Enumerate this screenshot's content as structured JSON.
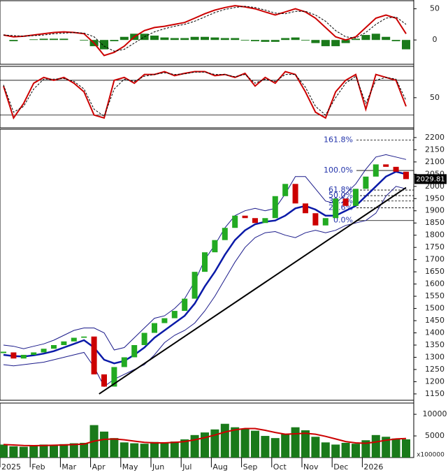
{
  "chart_data": [
    {
      "type": "macd",
      "ylim": [
        -39,
        63
      ],
      "yticks": [
        50,
        0
      ],
      "series": [
        {
          "color": "#cc0000",
          "values": [
            8,
            5,
            6,
            8,
            10,
            12,
            13,
            12,
            10,
            -5,
            -25,
            -20,
            -10,
            5,
            15,
            20,
            22,
            25,
            28,
            35,
            42,
            48,
            52,
            55,
            53,
            50,
            45,
            40,
            45,
            50,
            45,
            35,
            20,
            5,
            0,
            5,
            20,
            35,
            40,
            35,
            10
          ]
        },
        {
          "color": "#000000",
          "dash": true,
          "values": [
            8,
            7,
            6,
            7,
            8,
            10,
            11,
            12,
            11,
            5,
            -10,
            -18,
            -15,
            -5,
            5,
            13,
            18,
            22,
            25,
            30,
            37,
            44,
            49,
            52,
            54,
            52,
            48,
            43,
            42,
            46,
            46,
            40,
            30,
            15,
            5,
            3,
            12,
            25,
            35,
            37,
            25
          ]
        }
      ],
      "histogram": {
        "color": "#1a7a1a",
        "values": [
          0,
          -2,
          0,
          1,
          2,
          2,
          2,
          0,
          -1,
          -10,
          -15,
          -2,
          5,
          10,
          10,
          7,
          4,
          3,
          3,
          5,
          5,
          4,
          3,
          3,
          -1,
          -2,
          -3,
          -3,
          3,
          4,
          -1,
          -5,
          -10,
          -10,
          -5,
          2,
          8,
          10,
          5,
          -2,
          -15
        ]
      }
    },
    {
      "type": "line",
      "ylim": [
        -2,
        104
      ],
      "yticks": [
        50
      ],
      "ref_lines": [
        80,
        20
      ],
      "series": [
        {
          "color": "#cc0000",
          "values": [
            70,
            15,
            40,
            75,
            85,
            80,
            85,
            75,
            60,
            20,
            15,
            80,
            85,
            75,
            90,
            90,
            95,
            88,
            92,
            95,
            95,
            88,
            90,
            85,
            92,
            70,
            85,
            75,
            95,
            90,
            60,
            25,
            15,
            60,
            80,
            90,
            30,
            90,
            85,
            80,
            35
          ]
        },
        {
          "color": "#000000",
          "dash": true,
          "values": [
            72,
            25,
            35,
            65,
            82,
            82,
            83,
            78,
            65,
            30,
            18,
            65,
            82,
            78,
            87,
            90,
            93,
            90,
            91,
            94,
            94,
            90,
            90,
            86,
            90,
            75,
            82,
            78,
            90,
            90,
            68,
            35,
            20,
            50,
            75,
            87,
            40,
            80,
            85,
            82,
            45
          ]
        }
      ]
    },
    {
      "type": "candlestick",
      "ylim": [
        1124,
        2234
      ],
      "yticks": [
        1150,
        1200,
        1250,
        1300,
        1350,
        1400,
        1450,
        1500,
        1550,
        1600,
        1650,
        1700,
        1750,
        1800,
        1850,
        1900,
        1950,
        2000,
        2050,
        2100,
        2150,
        2200
      ],
      "up_color": "#22aa22",
      "down_color": "#cc0000",
      "values": [
        1320,
        1295,
        1310,
        1320,
        1335,
        1350,
        1365,
        1380,
        1385,
        1230,
        1180,
        1260,
        1300,
        1350,
        1400,
        1440,
        1460,
        1490,
        1540,
        1650,
        1730,
        1780,
        1830,
        1880,
        1870,
        1850,
        1870,
        1960,
        2010,
        1930,
        1890,
        1840,
        1870,
        1950,
        1920,
        1990,
        2040,
        2090,
        2080,
        2060,
        2029.81
      ],
      "series": [
        {
          "color": "#0a1aa8",
          "width": 2.5,
          "values": [
            1310,
            1305,
            1303,
            1308,
            1315,
            1325,
            1340,
            1355,
            1370,
            1340,
            1290,
            1275,
            1285,
            1310,
            1340,
            1380,
            1410,
            1440,
            1470,
            1520,
            1590,
            1650,
            1720,
            1780,
            1820,
            1845,
            1855,
            1860,
            1880,
            1910,
            1920,
            1905,
            1880,
            1880,
            1900,
            1920,
            1960,
            2000,
            2040,
            2060,
            2050
          ]
        },
        {
          "color": "#1a1a8a",
          "width": 1,
          "values": [
            1350,
            1345,
            1335,
            1345,
            1355,
            1370,
            1390,
            1410,
            1420,
            1420,
            1400,
            1330,
            1340,
            1380,
            1420,
            1460,
            1470,
            1500,
            1540,
            1610,
            1700,
            1760,
            1830,
            1880,
            1900,
            1910,
            1900,
            1910,
            1970,
            2040,
            2040,
            1990,
            1940,
            1930,
            1970,
            2010,
            2070,
            2120,
            2130,
            2120,
            2110
          ]
        },
        {
          "color": "#1a1a8a",
          "width": 1,
          "values": [
            1270,
            1265,
            1270,
            1275,
            1280,
            1290,
            1300,
            1310,
            1320,
            1260,
            1180,
            1210,
            1230,
            1250,
            1270,
            1310,
            1360,
            1390,
            1410,
            1440,
            1490,
            1550,
            1620,
            1690,
            1750,
            1790,
            1810,
            1815,
            1800,
            1790,
            1810,
            1820,
            1810,
            1820,
            1840,
            1850,
            1860,
            1890,
            1960,
            2000,
            1990
          ]
        }
      ],
      "trendline": {
        "start_index": 9.5,
        "start_value": 1150,
        "end_index": 40,
        "end_value": 1995
      },
      "fibonacci": [
        {
          "label": "161.8%",
          "value": 2190
        },
        {
          "label": "100.0%",
          "value": 2065
        },
        {
          "label": "61.8%",
          "value": 1985
        },
        {
          "label": "50.0%",
          "value": 1962
        },
        {
          "label": "38.2%",
          "value": 1940
        },
        {
          "label": "23.6%",
          "value": 1912
        },
        {
          "label": "0.0%",
          "value": 1860
        }
      ]
    },
    {
      "type": "bar",
      "ylim": [
        0,
        12600
      ],
      "yticks": [
        5000,
        10000
      ],
      "unit_label": "x100000",
      "color": "#1a7a1a",
      "values": [
        3000,
        2600,
        2500,
        2800,
        3000,
        2900,
        3100,
        3300,
        3400,
        7500,
        6000,
        4500,
        3500,
        3300,
        3200,
        3600,
        3500,
        3700,
        4200,
        5200,
        5800,
        6500,
        7800,
        7000,
        6600,
        6200,
        5000,
        4500,
        5500,
        7000,
        6300,
        4800,
        3500,
        3000,
        3400,
        3200,
        4000,
        5200,
        4800,
        4400,
        4200
      ],
      "series": [
        {
          "color": "#cc0000",
          "values": [
            3000,
            2900,
            2800,
            2750,
            2800,
            2850,
            2900,
            3000,
            3100,
            3800,
            4200,
            4300,
            4100,
            3800,
            3500,
            3400,
            3400,
            3500,
            3700,
            4100,
            4600,
            5200,
            5900,
            6400,
            6700,
            6700,
            6300,
            5800,
            5400,
            5500,
            5600,
            5400,
            4900,
            4300,
            3700,
            3400,
            3300,
            3600,
            4000,
            4300,
            4400
          ]
        }
      ],
      "categories": [
        "2025",
        null,
        null,
        "Feb",
        null,
        null,
        "Mar",
        null,
        null,
        "Apr",
        null,
        null,
        "May",
        null,
        null,
        "Jun",
        null,
        null,
        "Jul",
        null,
        null,
        "Aug",
        null,
        null,
        "Sep",
        null,
        null,
        "Oct",
        null,
        null,
        "Nov",
        null,
        null,
        "Dec",
        null,
        null,
        "2026",
        null,
        null,
        null,
        null
      ]
    }
  ]
}
